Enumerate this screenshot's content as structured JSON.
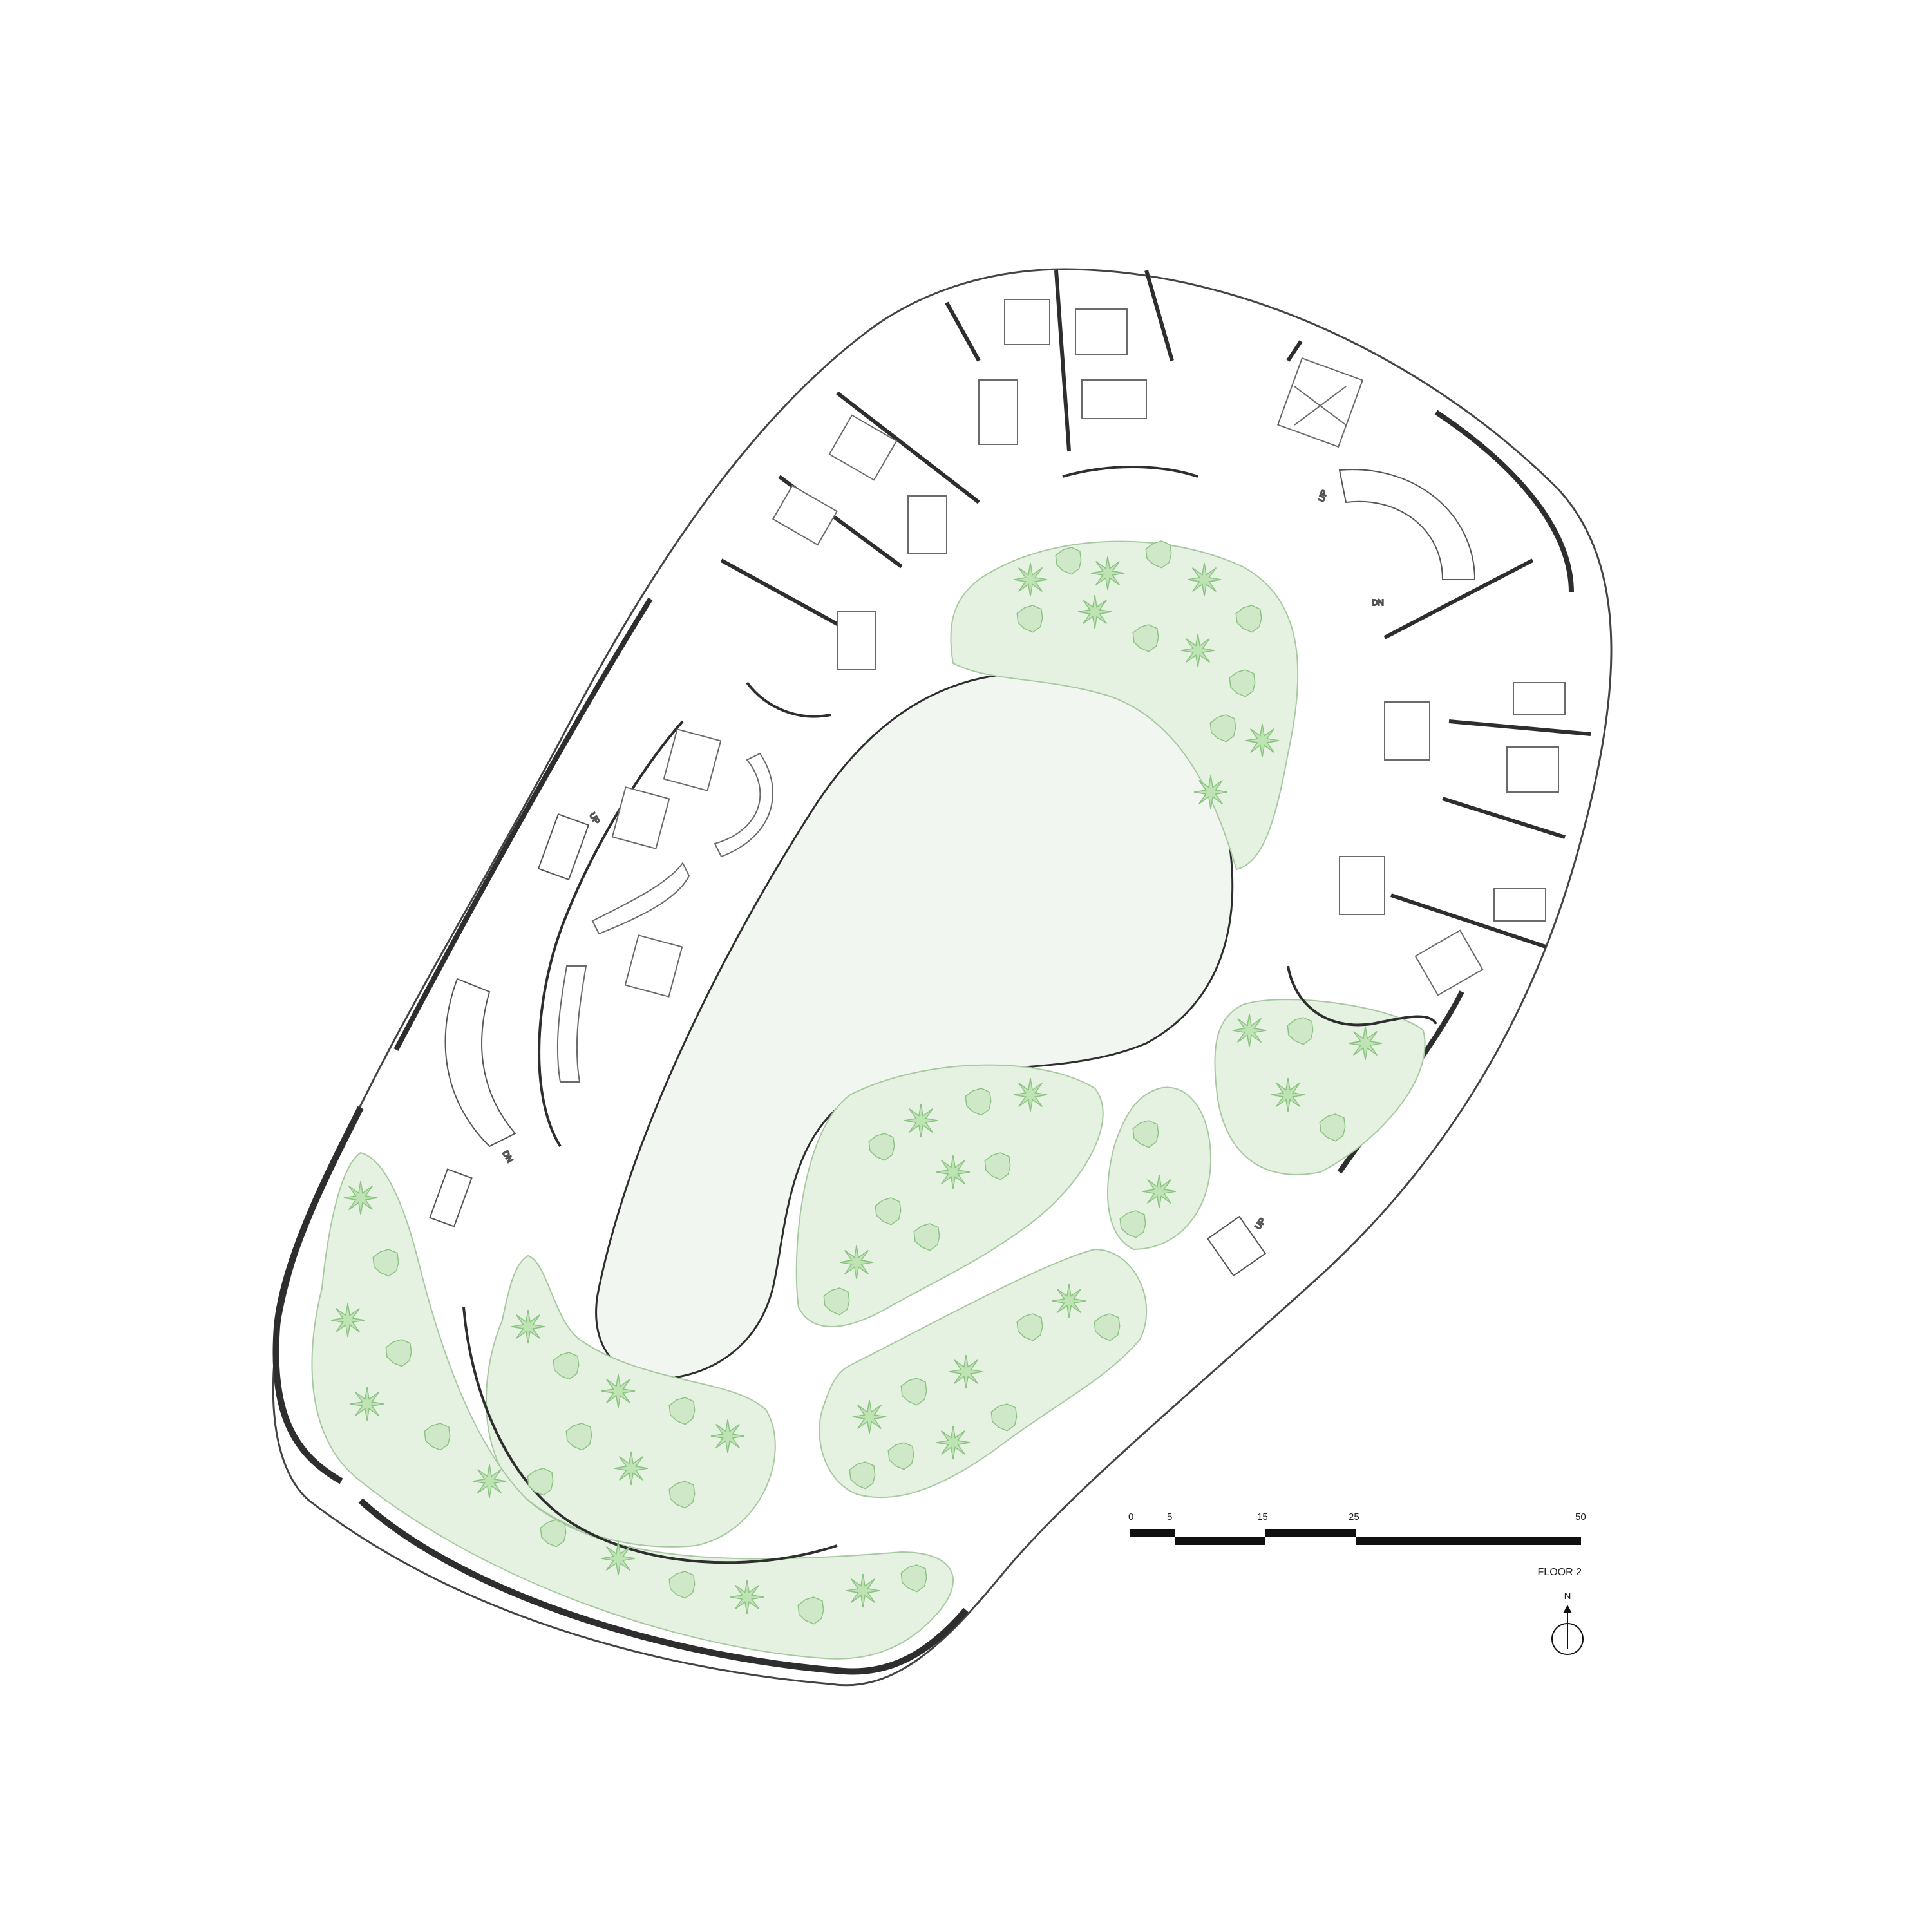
{
  "colors": {
    "wall": "#2e2e2e",
    "line": "#555555",
    "thin": "#9a9a9a",
    "planting": "#cfe8c8",
    "planting_stroke": "#a8cfa0",
    "plant": "#bfe4b4",
    "plant_stroke": "#8cc283",
    "atrium_fill": "#f2f6f1",
    "scale_bar": "#111111"
  },
  "scale_bar": {
    "labels": [
      "0",
      "5",
      "15",
      "25",
      "50"
    ],
    "values": [
      0,
      5,
      15,
      25,
      50
    ]
  },
  "floor_label": "FLOOR 2",
  "north_label": "N",
  "stair_labels": {
    "dn_west": "DN",
    "up_west": "UP",
    "up_north": "UP",
    "dn_north": "DN",
    "up_south": "UP"
  },
  "icons": {
    "north_arrow": "north-arrow-icon",
    "plant": "plant-icon",
    "shrub": "shrub-icon"
  }
}
